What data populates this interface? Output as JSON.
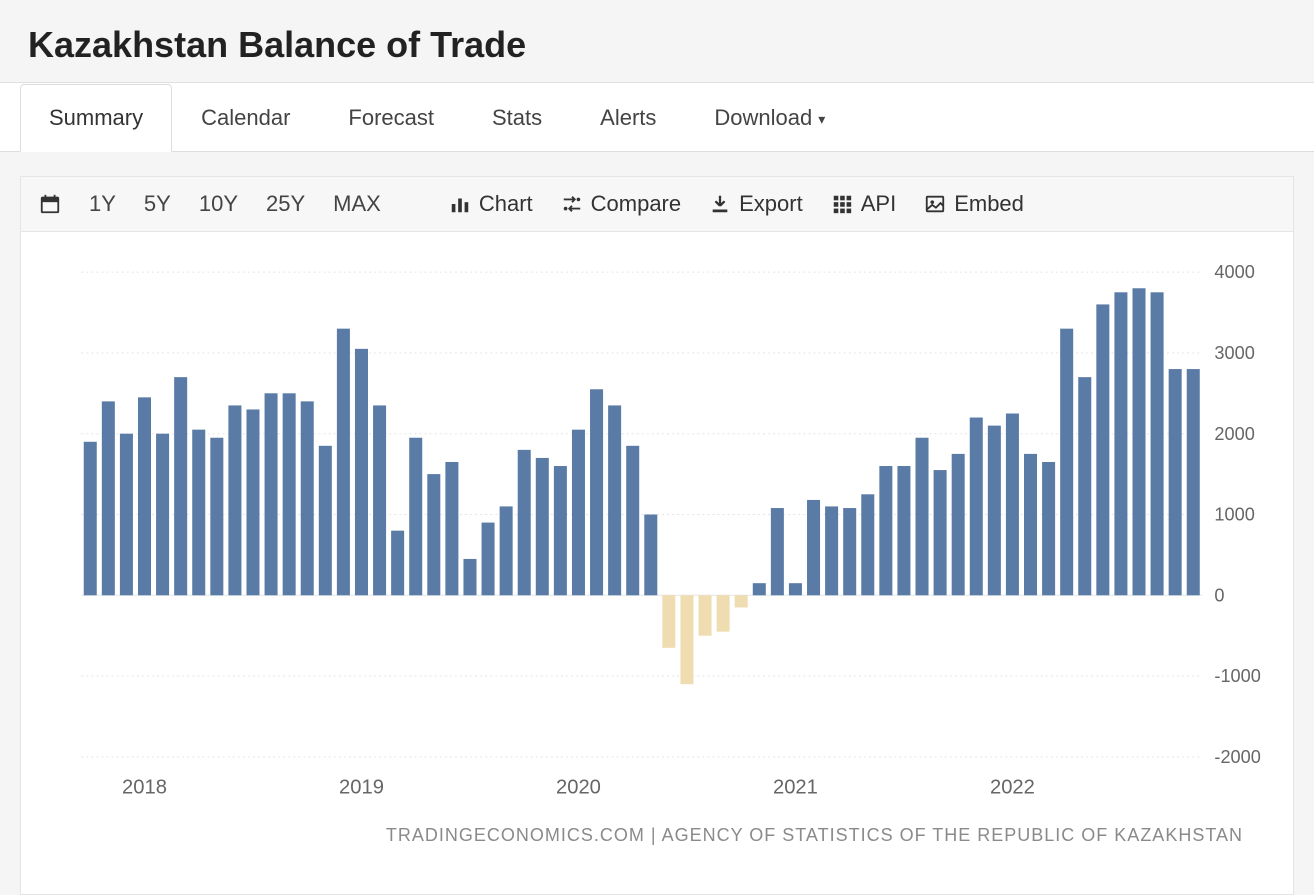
{
  "header": {
    "title": "Kazakhstan Balance of Trade"
  },
  "tabs": [
    {
      "label": "Summary",
      "active": true
    },
    {
      "label": "Calendar",
      "active": false
    },
    {
      "label": "Forecast",
      "active": false
    },
    {
      "label": "Stats",
      "active": false
    },
    {
      "label": "Alerts",
      "active": false
    },
    {
      "label": "Download",
      "active": false,
      "dropdown": true
    }
  ],
  "toolbar": {
    "ranges": [
      "1Y",
      "5Y",
      "10Y",
      "25Y",
      "MAX"
    ],
    "tools": {
      "chart": "Chart",
      "compare": "Compare",
      "export": "Export",
      "api": "API",
      "embed": "Embed"
    }
  },
  "source": "TRADINGECONOMICS.COM  |  AGENCY OF STATISTICS OF THE REPUBLIC OF KAZAKHSTAN",
  "chart": {
    "type": "bar",
    "ylim": [
      -2000,
      4000
    ],
    "ytick_step": 1000,
    "yticks": [
      -2000,
      -1000,
      0,
      1000,
      2000,
      3000,
      4000
    ],
    "xaxis_years": [
      2018,
      2019,
      2020,
      2021,
      2022
    ],
    "bar_width_ratio": 0.72,
    "colors": {
      "positive": "#5b7ba7",
      "negative": "#efdcb0",
      "grid": "#e5e5e5",
      "background": "#ffffff",
      "axis_text": "#666666"
    },
    "start_year": 2017,
    "start_month": 10,
    "values": [
      1900,
      2400,
      2000,
      2450,
      2000,
      2700,
      2050,
      1950,
      2350,
      2300,
      2500,
      2500,
      2400,
      1850,
      3300,
      3050,
      2350,
      800,
      1950,
      1500,
      1650,
      450,
      900,
      1100,
      1800,
      1700,
      1600,
      2050,
      2550,
      2350,
      1850,
      1000,
      -650,
      -1100,
      -500,
      -450,
      -150,
      150,
      1080,
      150,
      1180,
      1100,
      1080,
      1250,
      1600,
      1600,
      1950,
      1550,
      1750,
      2200,
      2100,
      2250,
      1750,
      1650,
      3300,
      2700,
      3600,
      3750,
      3800,
      3750,
      2800,
      2800
    ]
  }
}
